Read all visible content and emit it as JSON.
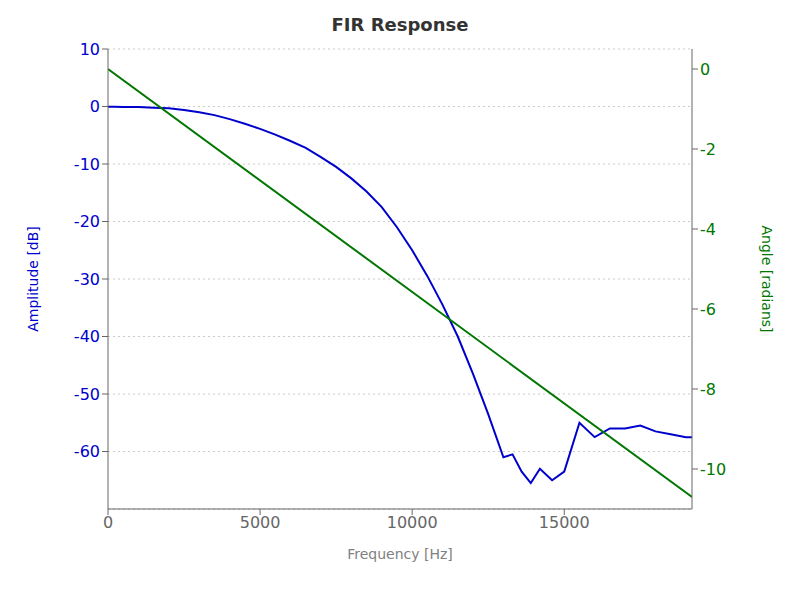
{
  "chart_data": {
    "type": "line",
    "title": "FIR Response",
    "xlabel": "Frequency [Hz]",
    "ylabel": "Amplitude [dB]",
    "y2label": "Angle [radians]",
    "xlim": [
      0,
      19200
    ],
    "xticks": [
      0,
      5000,
      10000,
      15000
    ],
    "ylim": [
      -70,
      10
    ],
    "yticks": [
      -60,
      -50,
      -40,
      -30,
      -20,
      -10,
      0,
      10
    ],
    "y2lim": [
      -11.0,
      0.5
    ],
    "y2ticks": [
      0,
      -2,
      -4,
      -6,
      -8,
      -10
    ],
    "grid": true,
    "series": [
      {
        "color": "#0000cc",
        "x": [
          0,
          200,
          500,
          1000,
          1500,
          2000,
          2500,
          3000,
          3500,
          4000,
          4500,
          5000,
          5500,
          6000,
          6500,
          7000,
          7500,
          8000,
          8500,
          9000,
          9500,
          10000,
          10500,
          11000,
          11500,
          12000,
          12500,
          13000,
          13300,
          13600,
          13900,
          14200,
          14600,
          15000,
          15500,
          16000,
          16500,
          17000,
          17500,
          18000,
          18500,
          19000,
          19200
        ],
        "values": [
          -0.05,
          -0.05,
          -0.1,
          -0.1,
          -0.2,
          -0.3,
          -0.6,
          -1.0,
          -1.5,
          -2.2,
          -3.0,
          -3.9,
          -4.9,
          -6.0,
          -7.2,
          -8.8,
          -10.5,
          -12.5,
          -14.8,
          -17.5,
          -21.0,
          -25.0,
          -29.5,
          -34.5,
          -40.0,
          -46.5,
          -53.5,
          -61.0,
          -60.5,
          -63.5,
          -65.5,
          -63.0,
          -65.0,
          -63.5,
          -55.0,
          -57.5,
          -56.0,
          -56.0,
          -55.5,
          -56.5,
          -57.0,
          -57.5,
          -57.5
        ]
      },
      {
        "color": "#007700",
        "axis": "y2",
        "x": [
          0,
          19200
        ],
        "values": [
          0,
          -10.7
        ]
      }
    ]
  }
}
